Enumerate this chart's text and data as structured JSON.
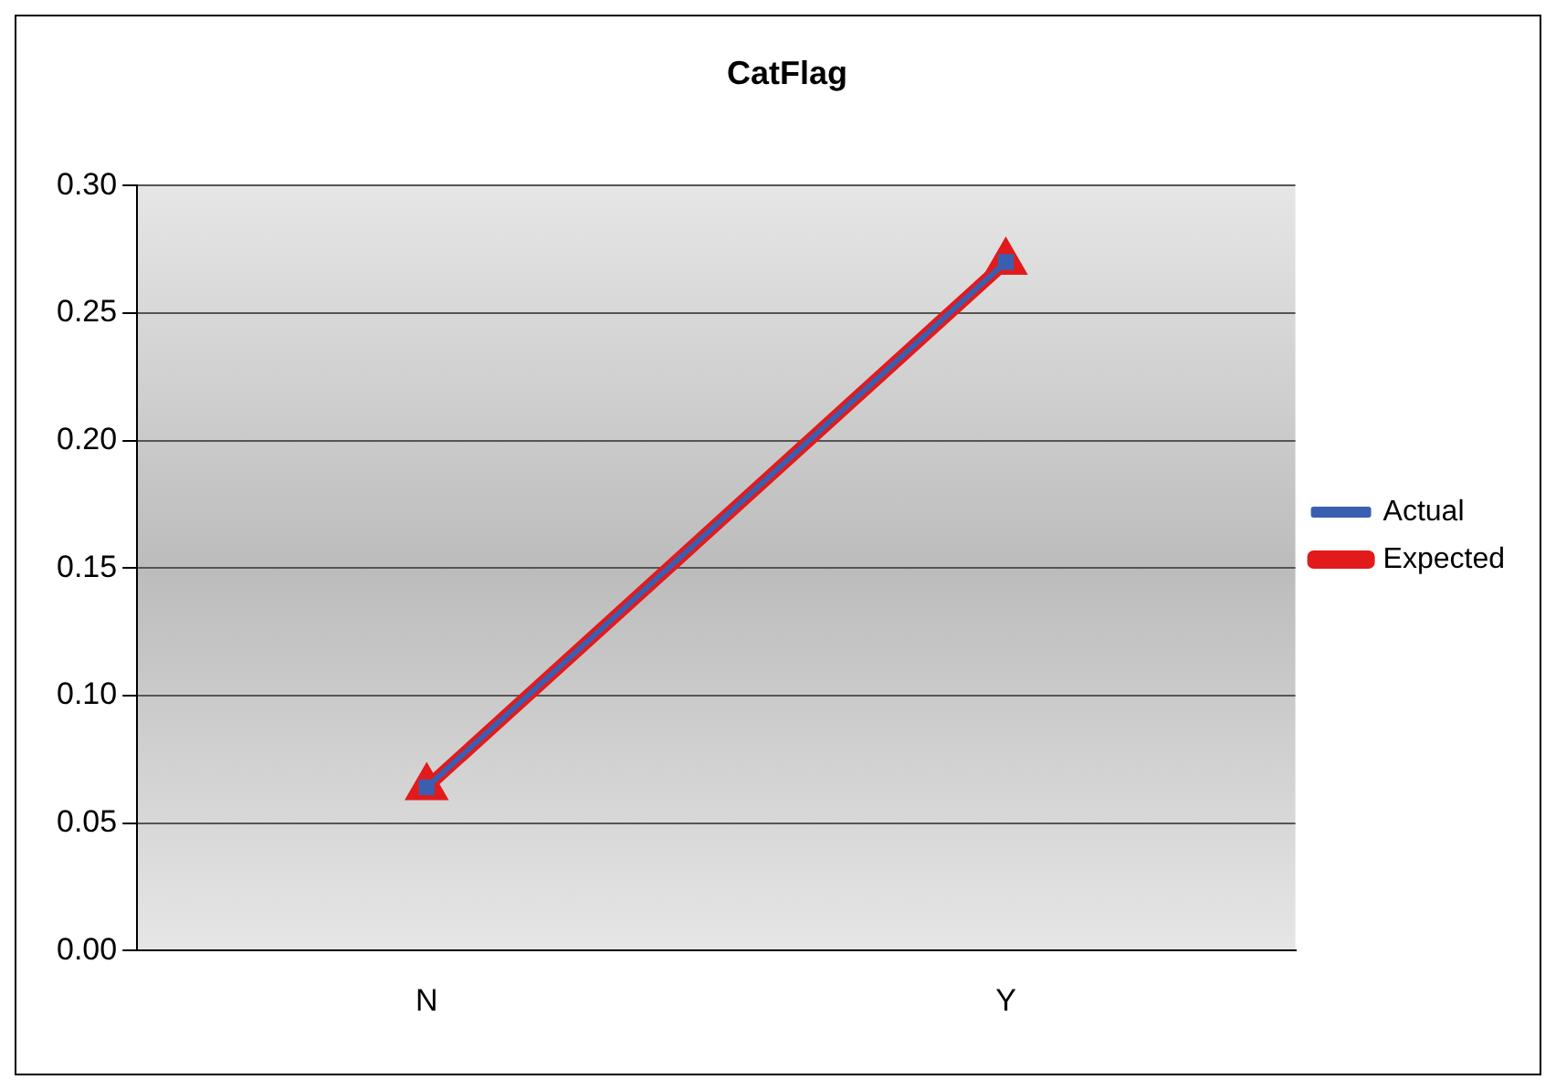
{
  "chart_data": {
    "type": "line",
    "title": "CatFlag",
    "categories": [
      "N",
      "Y"
    ],
    "series": [
      {
        "name": "Expected",
        "color": "#e31a1c",
        "values": [
          0.064,
          0.27
        ],
        "marker": "triangle"
      },
      {
        "name": "Actual",
        "color": "#3a5fb0",
        "values": [
          0.064,
          0.27
        ],
        "marker": "square"
      }
    ],
    "ylim": [
      0,
      0.3
    ],
    "yticks": [
      {
        "value": 0,
        "label": "0.00"
      },
      {
        "value": 0.05,
        "label": "0.05"
      },
      {
        "value": 0.1,
        "label": "0.10"
      },
      {
        "value": 0.15,
        "label": "0.15"
      },
      {
        "value": 0.2,
        "label": "0.20"
      },
      {
        "value": 0.25,
        "label": "0.25"
      },
      {
        "value": 0.3,
        "label": "0.30"
      }
    ],
    "grid": "y",
    "legend": "right"
  }
}
